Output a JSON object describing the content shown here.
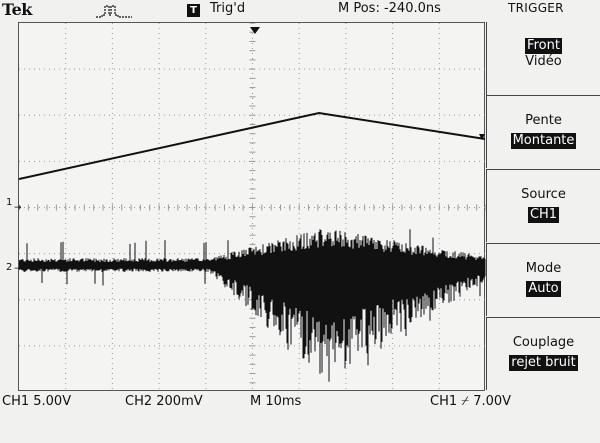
{
  "header": {
    "brand": "Tek",
    "acq_icon": "pulse-icon",
    "trigger_badge": "T",
    "trigger_status": "Trig'd",
    "mpos": "M Pos: -240.0ns",
    "menu_title": "TRIGGER"
  },
  "menu": {
    "type": {
      "selected": "Front",
      "other": "Vidéo"
    },
    "slope": {
      "label": "Pente",
      "value": "Montante"
    },
    "source": {
      "label": "Source",
      "value": "CH1"
    },
    "mode": {
      "label": "Mode",
      "value": "Auto"
    },
    "coupling": {
      "label": "Couplage",
      "value": "rejet bruit"
    }
  },
  "status": {
    "ch1": "CH1 5.00V",
    "ch2": "CH2 200mV",
    "time": "M 10ms",
    "trigger": "CH1 ⌿ 7.00V"
  },
  "markers": {
    "ch1": "1",
    "ch2": "2"
  },
  "colors": {
    "trace": "#111111",
    "background": "#f1f1ef",
    "grid": "#9a9a9a"
  }
}
